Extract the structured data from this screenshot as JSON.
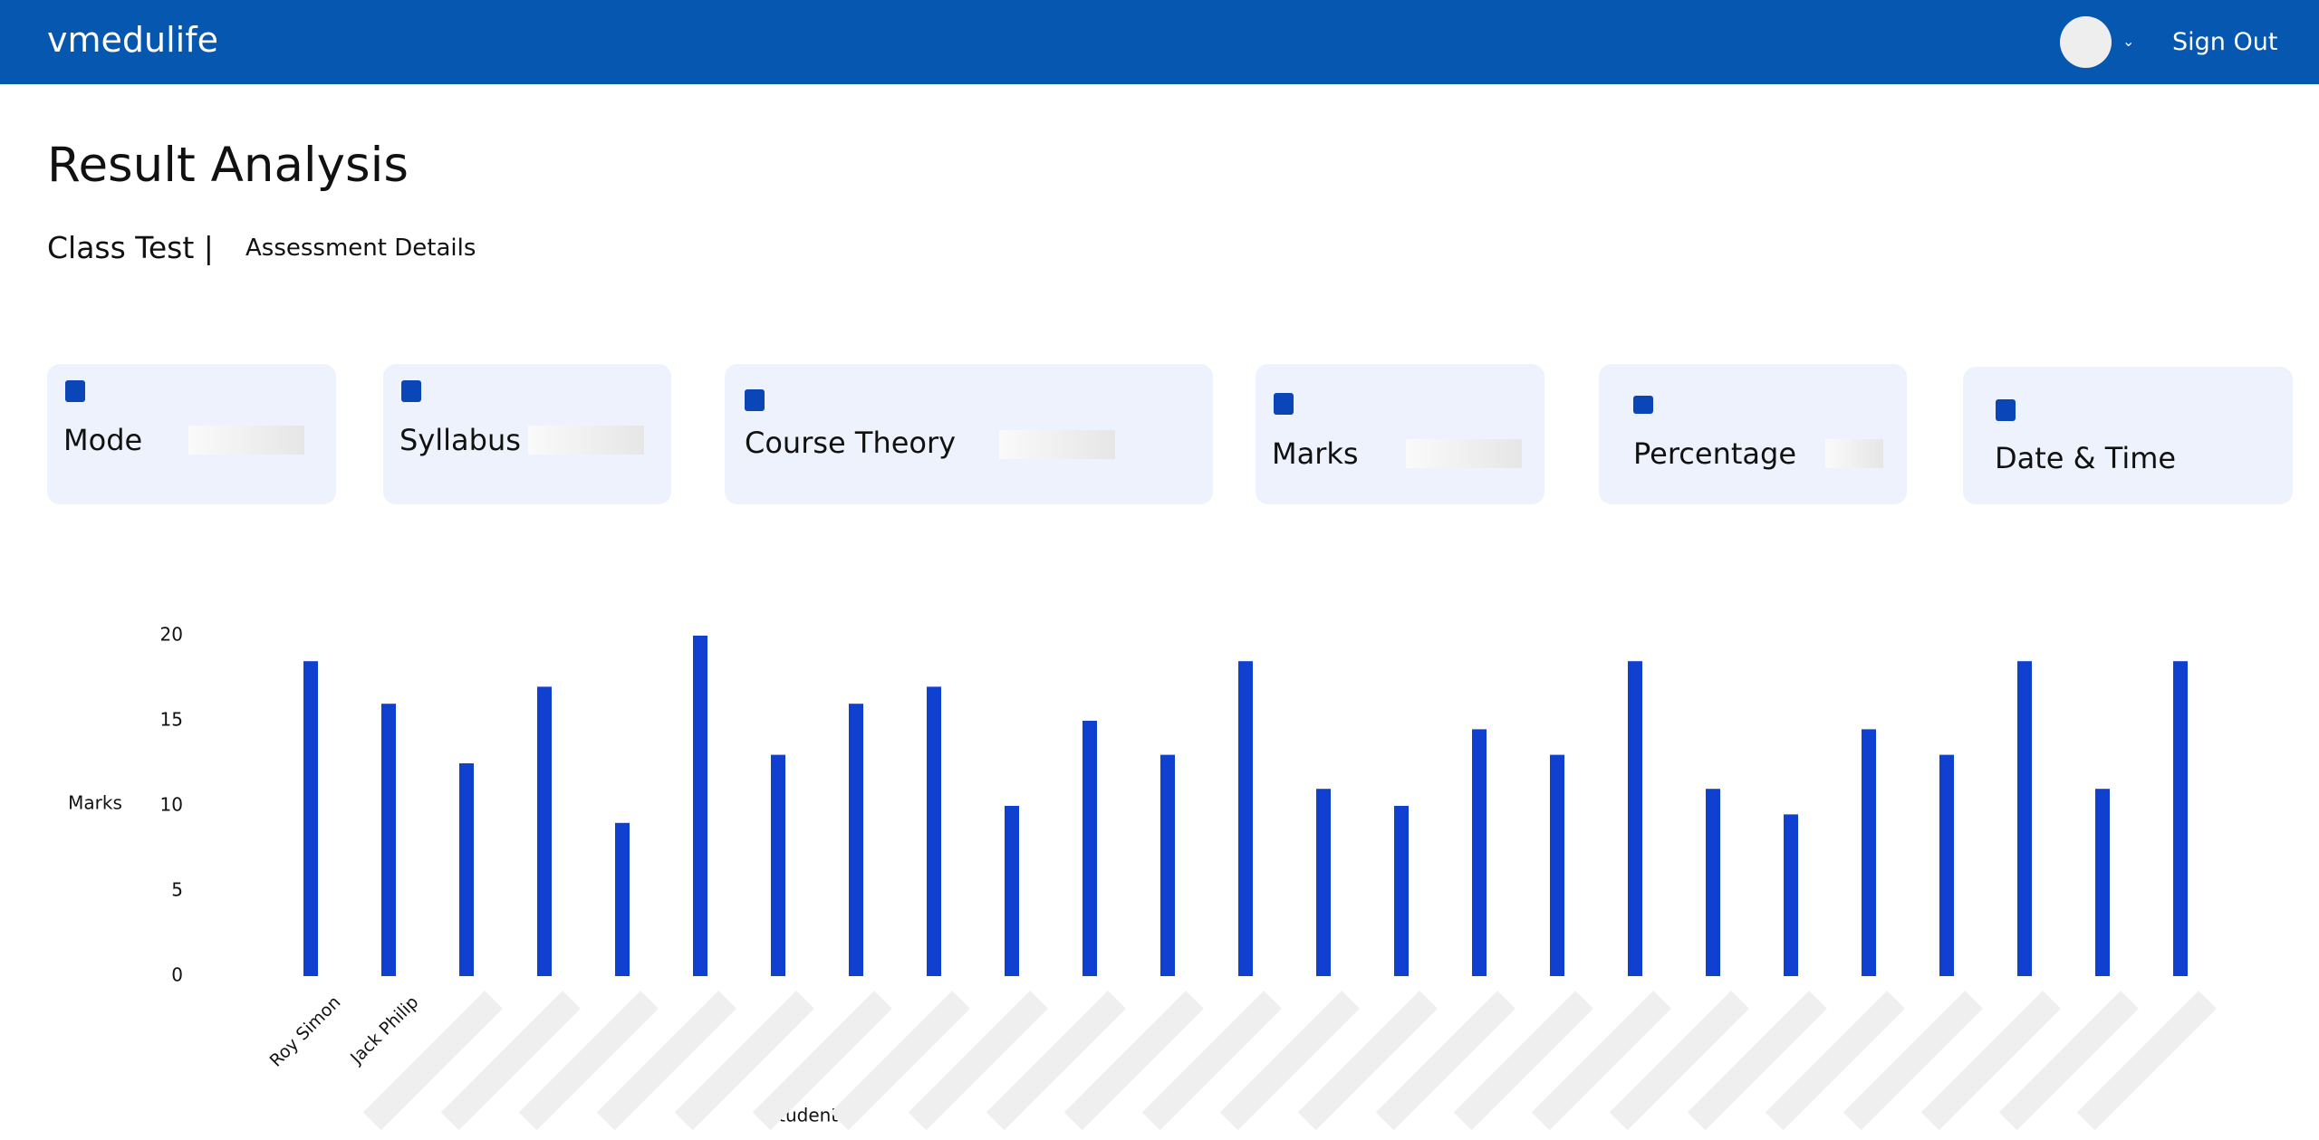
{
  "header": {
    "brand": "vmedulife",
    "sign_out": "Sign Out"
  },
  "page": {
    "title": "Result Analysis",
    "test_type": "Class Test |",
    "details_link": "Assessment Details"
  },
  "cards": [
    {
      "label": "Mode"
    },
    {
      "label": "Syllabus"
    },
    {
      "label": "Course Theory"
    },
    {
      "label": "Marks"
    },
    {
      "label": "Percentage"
    },
    {
      "label": "Date & Time"
    }
  ],
  "chart_data": {
    "type": "bar",
    "y_label": "Marks",
    "x_label": "Students",
    "categories": [
      "Roy Simon",
      "Jack Philip",
      null,
      null,
      null,
      null,
      null,
      null,
      null,
      null,
      null,
      null,
      null,
      null,
      null,
      null,
      null,
      null,
      null,
      null,
      null,
      null,
      null,
      null,
      null
    ],
    "values": [
      18.5,
      16,
      12.5,
      17,
      9,
      20,
      13,
      16,
      17,
      10,
      15,
      13,
      18.5,
      11,
      10,
      14.5,
      13,
      18.5,
      11,
      9.5,
      14.5,
      13,
      18.5,
      11,
      18.5
    ],
    "color": "#1040d0",
    "ylim": [
      0,
      20
    ],
    "yticks": [
      0,
      5,
      10,
      15,
      20
    ],
    "grid": false
  }
}
